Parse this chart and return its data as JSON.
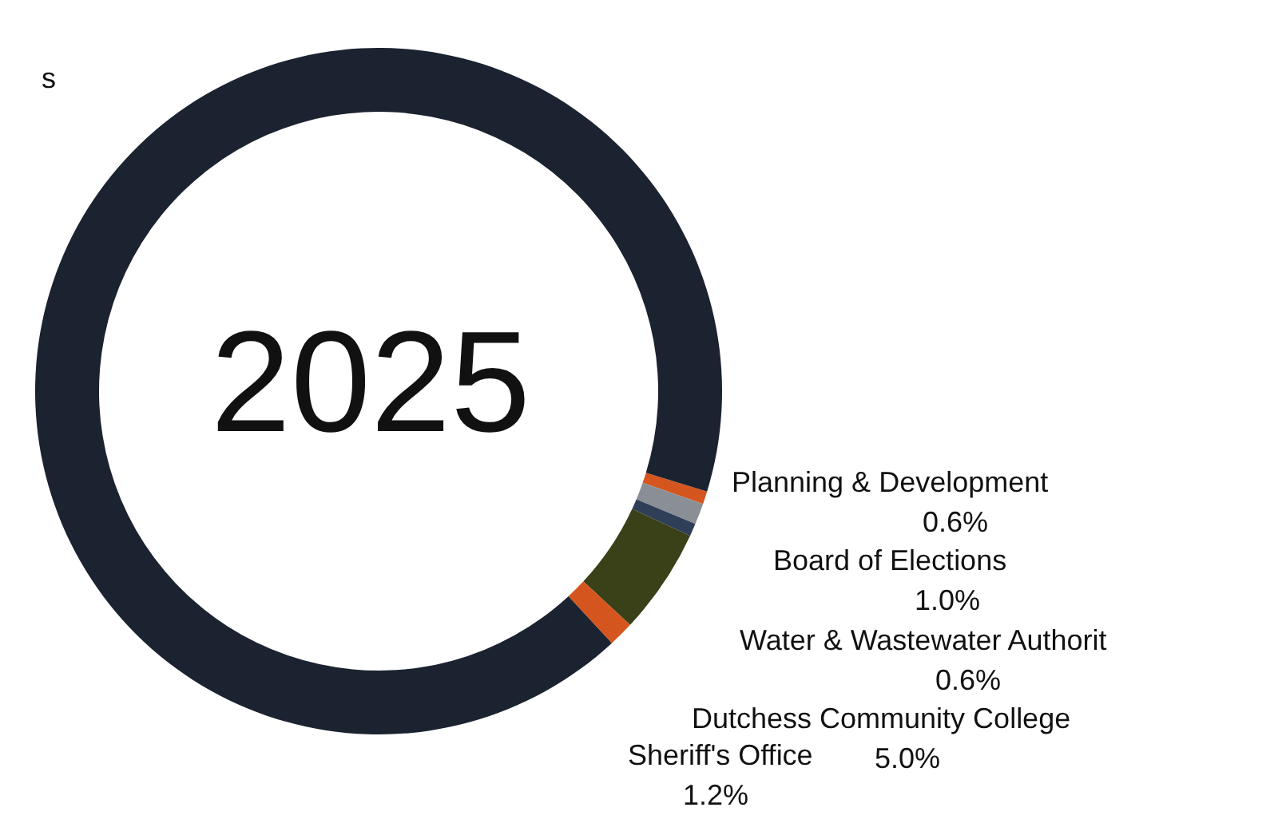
{
  "chart_data": {
    "type": "donut",
    "title": "2025",
    "categories": [
      "Planning & Development",
      "Board of Elections",
      "Water & Wastewater Authorit",
      "Dutchess Community College",
      "Sheriff's Office",
      "s"
    ],
    "values": [
      0.6,
      1.0,
      0.6,
      5.0,
      1.2,
      91.6
    ],
    "colors": [
      "#d4561e",
      "#8a8f96",
      "#2e3f57",
      "#3a4018",
      "#d4561e",
      "#1b2230"
    ],
    "value_labels": [
      "0.6%",
      "1.0%",
      "0.6%",
      "5.0%",
      "1.2%",
      null
    ],
    "legend": false
  }
}
